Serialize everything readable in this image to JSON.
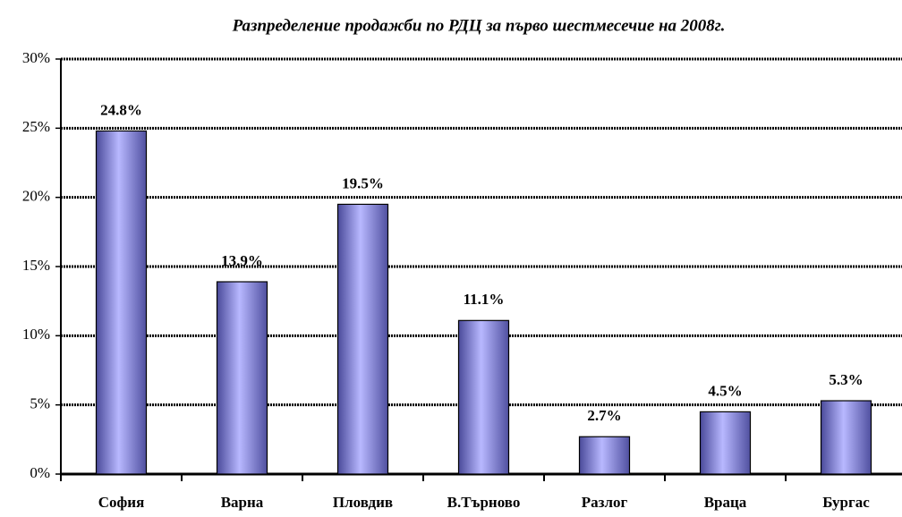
{
  "chart_data": {
    "type": "bar",
    "title": "Разпределение продажби по РДЦ за първо шестмесечие на 2008г.",
    "categories": [
      "София",
      "Варна",
      "Пловдив",
      "В.Търново",
      "Разлог",
      "Враца",
      "Бургас"
    ],
    "values": [
      24.8,
      13.9,
      19.5,
      11.1,
      2.7,
      4.5,
      5.3
    ],
    "value_labels": [
      "24.8%",
      "13.9%",
      "19.5%",
      "11.1%",
      "2.7%",
      "4.5%",
      "5.3%"
    ],
    "color": "#9999ff",
    "ylim": [
      0,
      30
    ],
    "yticks": [
      {
        "value": 0,
        "label": "0%"
      },
      {
        "value": 5,
        "label": "5%"
      },
      {
        "value": 10,
        "label": "10%"
      },
      {
        "value": 15,
        "label": "15%"
      },
      {
        "value": 20,
        "label": "20%"
      },
      {
        "value": 25,
        "label": "25%"
      },
      {
        "value": 30,
        "label": "30%"
      }
    ],
    "grid": true
  }
}
